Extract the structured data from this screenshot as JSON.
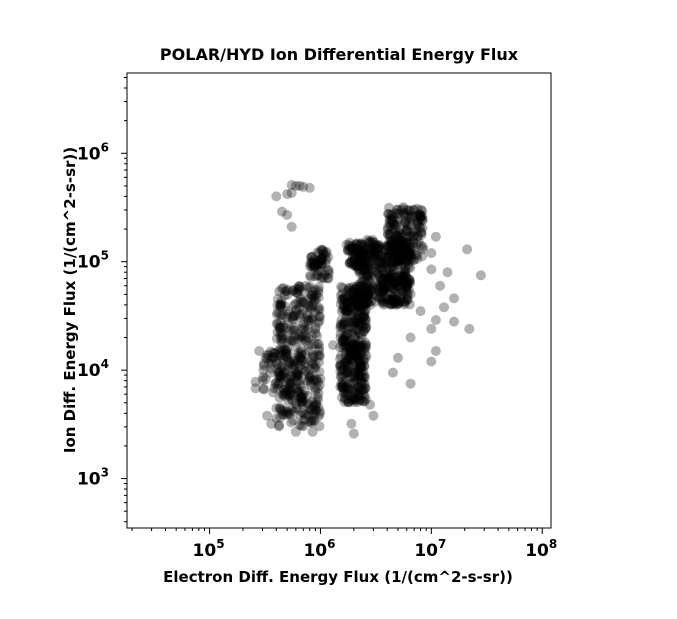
{
  "chart_data": {
    "type": "scatter",
    "title": "POLAR/HYD  Ion Differential Energy Flux",
    "xlabel": "Electron Diff. Energy Flux (1/(cm^2-s-sr))",
    "ylabel": "Ion Diff. Energy Flux (1/(cm^2-s-sr))",
    "xscale": "log",
    "yscale": "log",
    "xlim": [
      18000,
      120000000
    ],
    "ylim": [
      350,
      5500000
    ],
    "grid": false,
    "marker_color": "#000000",
    "marker_opacity": 0.3,
    "x_ticks": [
      {
        "base": "10",
        "exp": "5",
        "value": 100000
      },
      {
        "base": "10",
        "exp": "6",
        "value": 1000000
      },
      {
        "base": "10",
        "exp": "7",
        "value": 10000000
      },
      {
        "base": "10",
        "exp": "8",
        "value": 100000000
      }
    ],
    "y_ticks": [
      {
        "base": "10",
        "exp": "3",
        "value": 1000
      },
      {
        "base": "10",
        "exp": "4",
        "value": 10000
      },
      {
        "base": "10",
        "exp": "5",
        "value": 100000
      },
      {
        "base": "10",
        "exp": "6",
        "value": 1000000
      }
    ],
    "clusters": [
      {
        "x": [
          1500000.0,
          2600000.0
        ],
        "y": [
          5000,
          60000
        ],
        "n": 380
      },
      {
        "x": [
          2200000.0,
          6500000.0
        ],
        "y": [
          40000,
          160000
        ],
        "n": 420
      },
      {
        "x": [
          4000000.0,
          8500000.0
        ],
        "y": [
          100000,
          320000
        ],
        "n": 170
      },
      {
        "x": [
          400000.0,
          1000000.0
        ],
        "y": [
          3000,
          60000
        ],
        "n": 330
      },
      {
        "x": [
          300000.0,
          700000.0
        ],
        "y": [
          5000,
          15000
        ],
        "n": 90
      },
      {
        "x": [
          800000.0,
          1200000.0
        ],
        "y": [
          70000,
          130000
        ],
        "n": 60
      },
      {
        "x": [
          1700000.0,
          2500000.0
        ],
        "y": [
          90000,
          150000
        ],
        "n": 60
      }
    ],
    "points": [
      [
        600000.0,
        500000.0
      ],
      [
        550000.0,
        510000.0
      ],
      [
        650000.0,
        500000.0
      ],
      [
        700000.0,
        490000.0
      ],
      [
        800000.0,
        480000.0
      ],
      [
        400000.0,
        400000.0
      ],
      [
        500000.0,
        420000.0
      ],
      [
        550000.0,
        430000.0
      ],
      [
        450000.0,
        290000.0
      ],
      [
        500000.0,
        270000.0
      ],
      [
        550000.0,
        210000.0
      ],
      [
        11000000.0,
        170000.0
      ],
      [
        10000000.0,
        120000.0
      ],
      [
        10000000.0,
        85000.0
      ],
      [
        14000000.0,
        80000.0
      ],
      [
        21000000.0,
        130000.0
      ],
      [
        28000000.0,
        75000.0
      ],
      [
        12000000.0,
        60000.0
      ],
      [
        13000000.0,
        38000.0
      ],
      [
        16000000.0,
        46000.0
      ],
      [
        16000000.0,
        28000.0
      ],
      [
        22000000.0,
        24000.0
      ],
      [
        10000000.0,
        24000.0
      ],
      [
        11000000.0,
        15000.0
      ],
      [
        10000000.0,
        12000.0
      ],
      [
        6500000.0,
        20000.0
      ],
      [
        6500000.0,
        7500.0
      ],
      [
        11000000.0,
        29000.0
      ],
      [
        8000000.0,
        35000.0
      ],
      [
        5000000.0,
        13000.0
      ],
      [
        2000000.0,
        2600.0
      ],
      [
        1900000.0,
        3200.0
      ],
      [
        3000000.0,
        3800.0
      ],
      [
        2800000.0,
        4800.0
      ],
      [
        4500000.0,
        9500.0
      ],
      [
        850000.0,
        2700.0
      ],
      [
        600000.0,
        2700.0
      ],
      [
        360000.0,
        3200.0
      ],
      [
        330000.0,
        3800.0
      ],
      [
        260000.0,
        6800.0
      ],
      [
        260000.0,
        7800.0
      ],
      [
        320000.0,
        13000.0
      ],
      [
        280000.0,
        15000.0
      ],
      [
        1300000.0,
        17000.0
      ],
      [
        3600000.0,
        55000.0
      ]
    ]
  }
}
